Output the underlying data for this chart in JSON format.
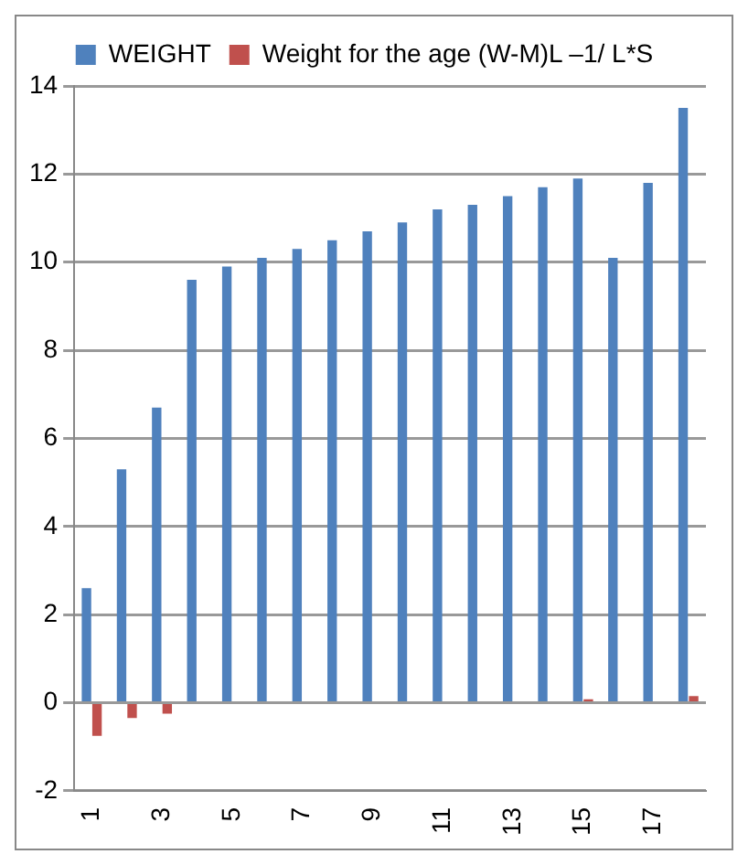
{
  "chart_data": {
    "type": "bar",
    "categories": [
      "1",
      null,
      "3",
      null,
      "5",
      null,
      "7",
      null,
      "9",
      null,
      "11",
      null,
      "13",
      null,
      "15",
      null,
      "17",
      null
    ],
    "series": [
      {
        "name": "WEIGHT",
        "color": "#4f81bd",
        "values": [
          2.6,
          5.3,
          6.7,
          9.6,
          9.9,
          10.1,
          10.3,
          10.5,
          10.7,
          10.9,
          11.2,
          11.3,
          11.5,
          11.7,
          11.9,
          10.1,
          11.8,
          13.5
        ]
      },
      {
        "name": "Weight for the age (W-M)L –1/ L*S",
        "color": "#c0504d",
        "values": [
          -0.75,
          -0.35,
          -0.25,
          0,
          0,
          0,
          0,
          0,
          0.03,
          0.03,
          0.03,
          0.03,
          0.03,
          0.03,
          0.08,
          0,
          0.03,
          0.15
        ]
      }
    ],
    "ylim": [
      -2,
      14
    ],
    "yticks": [
      -2,
      0,
      2,
      4,
      6,
      8,
      10,
      12,
      14
    ],
    "grid": "y",
    "legend": "top"
  }
}
